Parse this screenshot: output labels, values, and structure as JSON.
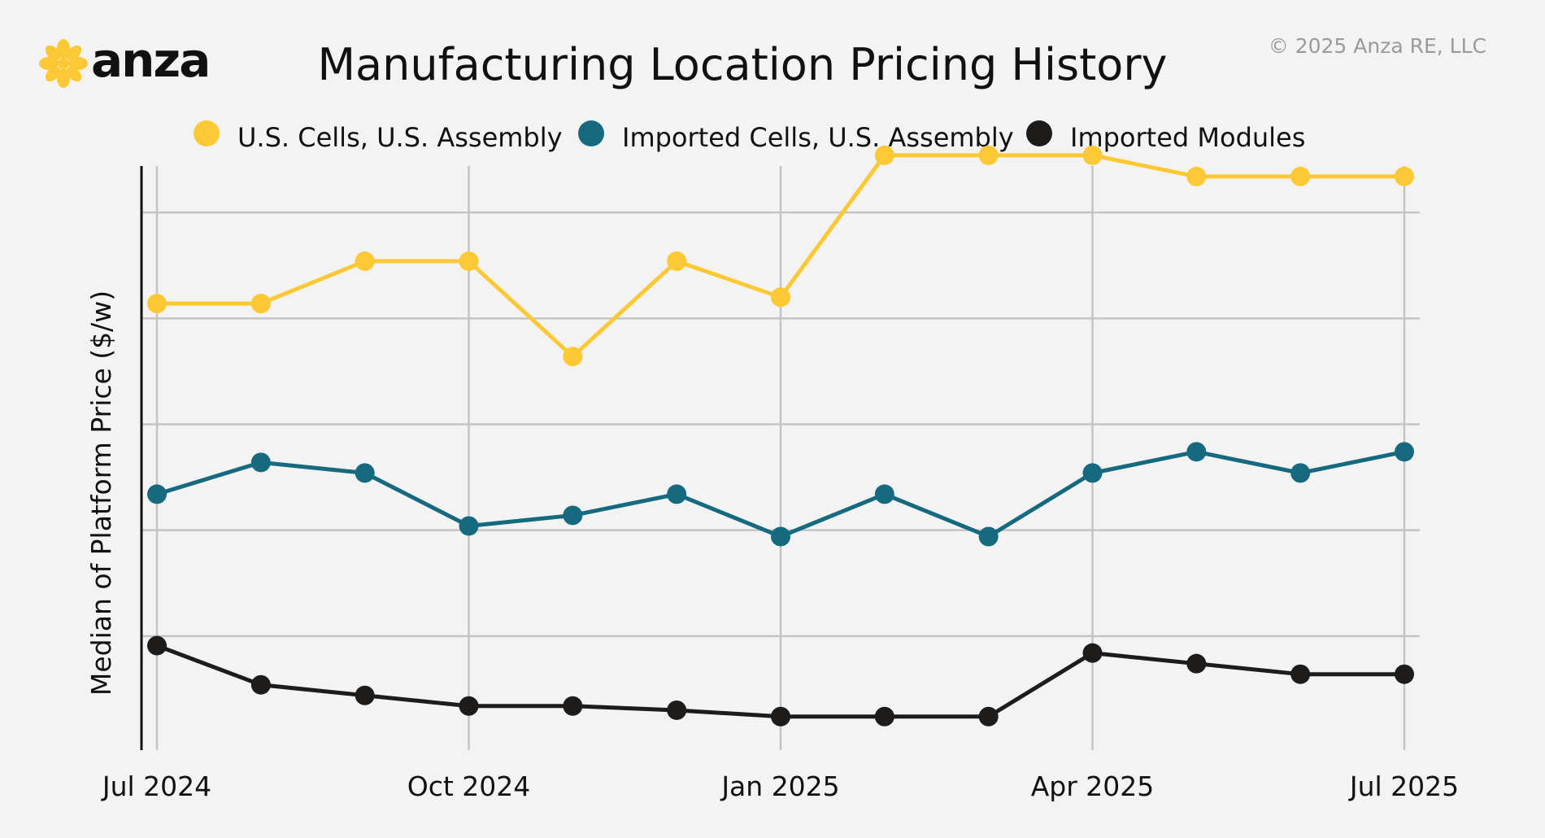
{
  "brand": {
    "name": "anza",
    "copyright": "© 2025 Anza RE, LLC"
  },
  "colors": {
    "background": "#f3f3f3",
    "grid": "#c4c4c4",
    "axis": "#111111",
    "text": "#111111",
    "muted": "#9a9a9a",
    "logo": "#fcc935"
  },
  "chart_data": {
    "type": "line",
    "title": "Manufacturing Location Pricing History",
    "xlabel": "",
    "ylabel": "Median of Platform Price ($/w)",
    "ylim": [
      0,
      6
    ],
    "y_tick_labels_visible": false,
    "grid": true,
    "legend_position": "top",
    "x_tick_labels": [
      "Jul 2024",
      "Oct 2024",
      "Jan 2025",
      "Apr 2025",
      "Jul 2025"
    ],
    "x_tick_indices": [
      0,
      3,
      6,
      9,
      12
    ],
    "x": [
      "Jul 2024",
      "Aug 2024",
      "Sep 2024",
      "Oct 2024",
      "Nov 2024",
      "Dec 2024",
      "Jan 2025",
      "Feb 2025",
      "Mar 2025",
      "Apr 2025",
      "May 2025",
      "Jun 2025",
      "Jul 2025"
    ],
    "series": [
      {
        "name": "U.S. Cells, U.S. Assembly",
        "color": "#fcc935",
        "values": [
          4.14,
          4.14,
          4.54,
          4.54,
          3.64,
          4.54,
          4.2,
          5.54,
          5.54,
          5.54,
          5.34,
          5.34,
          5.34
        ]
      },
      {
        "name": "Imported Cells, U.S. Assembly",
        "color": "#156a80",
        "values": [
          2.34,
          2.64,
          2.54,
          2.04,
          2.14,
          2.34,
          1.94,
          2.34,
          1.94,
          2.54,
          2.74,
          2.54,
          2.74
        ]
      },
      {
        "name": "Imported Modules",
        "color": "#1e1b1b",
        "values": [
          0.91,
          0.54,
          0.44,
          0.34,
          0.34,
          0.3,
          0.24,
          0.24,
          0.24,
          0.84,
          0.74,
          0.64,
          0.64
        ]
      }
    ]
  }
}
